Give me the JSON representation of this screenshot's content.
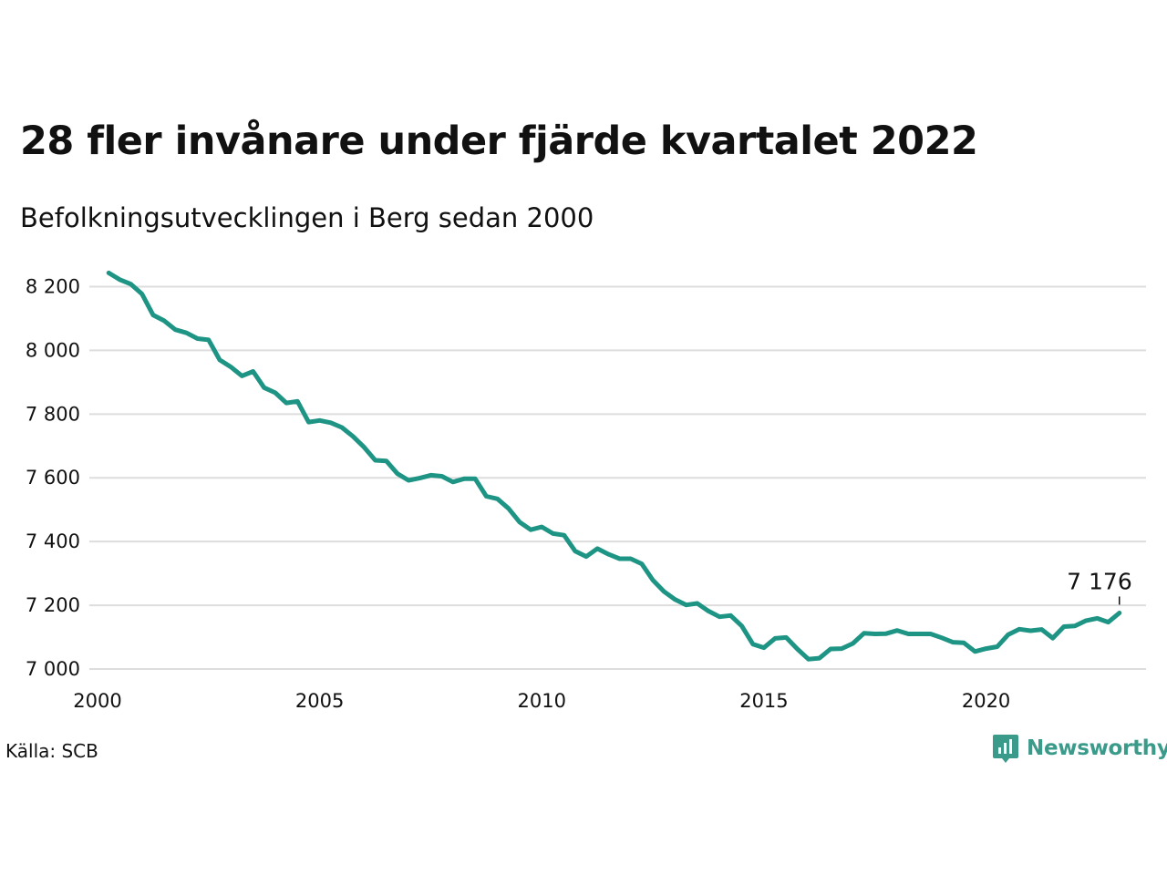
{
  "title": "28 fler invånare under fjärde kvartalet 2022",
  "subtitle": "Befolkningsutvecklingen i Berg sedan 2000",
  "source": "Källa: SCB",
  "brand": {
    "name": "Newsworthy",
    "color": "#3a9b8b",
    "icon": "chart-bubble-icon"
  },
  "colors": {
    "line": "#1e9485",
    "grid": "#dddddd",
    "text": "#111111"
  },
  "chart_data": {
    "type": "line",
    "title": "",
    "xlabel": "",
    "ylabel": "",
    "xlim": [
      2000,
      2023.6
    ],
    "ylim": [
      7000,
      8250
    ],
    "x_ticks": [
      2000,
      2005,
      2010,
      2015,
      2020
    ],
    "y_ticks": [
      7000,
      7200,
      7400,
      7600,
      7800,
      8000,
      8200
    ],
    "grid": "horizontal",
    "x_start": 2000.25,
    "x_step": 0.25,
    "values": [
      8243,
      8222,
      8208,
      8177,
      8111,
      8093,
      8065,
      8055,
      8037,
      8033,
      7970,
      7948,
      7920,
      7934,
      7883,
      7867,
      7835,
      7840,
      7775,
      7780,
      7773,
      7758,
      7730,
      7696,
      7655,
      7653,
      7613,
      7592,
      7599,
      7608,
      7605,
      7587,
      7597,
      7597,
      7542,
      7534,
      7504,
      7461,
      7437,
      7446,
      7425,
      7420,
      7370,
      7353,
      7378,
      7360,
      7346,
      7346,
      7330,
      7279,
      7243,
      7218,
      7201,
      7206,
      7182,
      7164,
      7168,
      7135,
      7078,
      7067,
      7096,
      7099,
      7063,
      7031,
      7034,
      7063,
      7064,
      7080,
      7112,
      7110,
      7111,
      7121,
      7110,
      7110,
      7110,
      7098,
      7084,
      7082,
      7055,
      7064,
      7070,
      7108,
      7125,
      7120,
      7124,
      7097,
      7133,
      7135,
      7152,
      7159,
      7147,
      7176
    ],
    "annotation": {
      "label": "7 176",
      "value": 7176
    }
  }
}
